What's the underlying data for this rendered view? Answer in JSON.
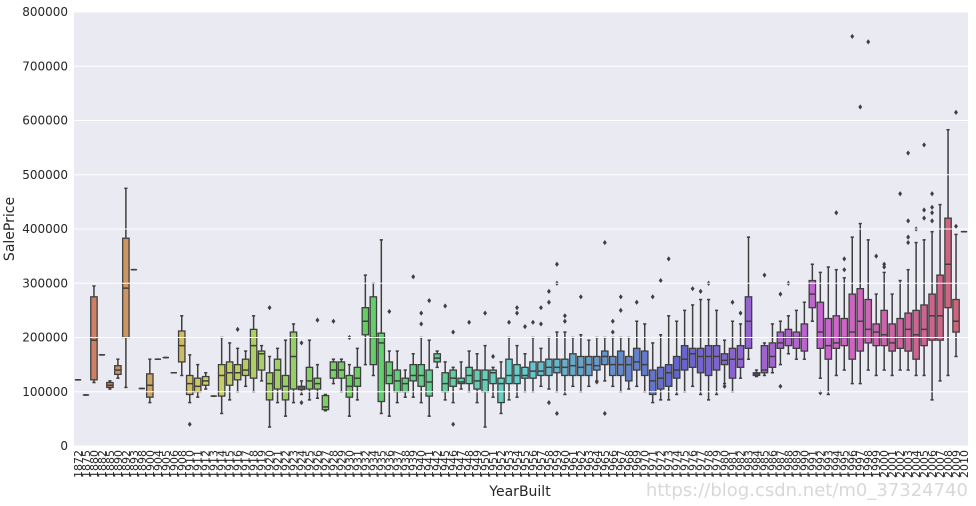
{
  "chart_data": {
    "type": "box",
    "x_label": "YearBuilt",
    "y_label": "SalePrice",
    "watermark": "https://blog.csdn.net/m0_37324740",
    "palette": "husl",
    "ylim": [
      0,
      800000
    ],
    "yticks": [
      0,
      100000,
      200000,
      300000,
      400000,
      500000,
      600000,
      700000,
      800000
    ],
    "grid": true,
    "categories": [
      "1872",
      "1875",
      "1880",
      "1882",
      "1885",
      "1890",
      "1892",
      "1893",
      "1898",
      "1900",
      "1904",
      "1905",
      "1906",
      "1908",
      "1910",
      "1911",
      "1912",
      "1913",
      "1914",
      "1915",
      "1916",
      "1917",
      "1918",
      "1919",
      "1920",
      "1921",
      "1922",
      "1923",
      "1924",
      "1925",
      "1926",
      "1927",
      "1928",
      "1929",
      "1930",
      "1931",
      "1932",
      "1934",
      "1935",
      "1936",
      "1937",
      "1938",
      "1939",
      "1940",
      "1941",
      "1942",
      "1945",
      "1946",
      "1947",
      "1948",
      "1949",
      "1950",
      "1951",
      "1952",
      "1953",
      "1954",
      "1955",
      "1956",
      "1957",
      "1958",
      "1959",
      "1960",
      "1961",
      "1962",
      "1963",
      "1964",
      "1965",
      "1966",
      "1967",
      "1968",
      "1969",
      "1970",
      "1971",
      "1972",
      "1973",
      "1974",
      "1975",
      "1976",
      "1977",
      "1978",
      "1979",
      "1980",
      "1981",
      "1982",
      "1983",
      "1984",
      "1985",
      "1986",
      "1987",
      "1988",
      "1989",
      "1990",
      "1991",
      "1992",
      "1993",
      "1994",
      "1995",
      "1996",
      "1997",
      "1998",
      "1999",
      "2000",
      "2001",
      "2002",
      "2003",
      "2004",
      "2005",
      "2006",
      "2007",
      "2008",
      "2009",
      "2010"
    ],
    "whislo": [
      122000,
      94000,
      117000,
      168000,
      105000,
      125000,
      108000,
      325000,
      106000,
      80000,
      160000,
      163000,
      135000,
      130000,
      80000,
      90000,
      105000,
      92000,
      60000,
      85000,
      100000,
      110000,
      100000,
      120000,
      35000,
      80000,
      55000,
      80000,
      95000,
      85000,
      88000,
      65000,
      115000,
      100000,
      55000,
      85000,
      150000,
      130000,
      60000,
      55000,
      80000,
      90000,
      90000,
      80000,
      55000,
      145000,
      85000,
      80000,
      105000,
      100000,
      80000,
      35000,
      90000,
      60000,
      85000,
      90000,
      100000,
      100000,
      110000,
      105000,
      100000,
      95000,
      110000,
      100000,
      110000,
      120000,
      120000,
      110000,
      100000,
      105000,
      110000,
      100000,
      80000,
      85000,
      85000,
      95000,
      100000,
      110000,
      95000,
      85000,
      95000,
      115000,
      100000,
      125000,
      160000,
      128000,
      130000,
      135000,
      150000,
      170000,
      160000,
      160000,
      230000,
      125000,
      95000,
      130000,
      140000,
      115000,
      115000,
      140000,
      130000,
      140000,
      130000,
      140000,
      140000,
      130000,
      130000,
      85000,
      120000,
      130000,
      165000,
      395000
    ],
    "q1": [
      122000,
      94000,
      122000,
      168000,
      108000,
      132000,
      200000,
      325000,
      106000,
      90000,
      160000,
      163000,
      135000,
      155000,
      95000,
      100000,
      112000,
      92000,
      92000,
      112000,
      122000,
      130000,
      125000,
      140000,
      85000,
      105000,
      85000,
      105000,
      104000,
      105000,
      105000,
      67000,
      125000,
      125000,
      90000,
      110000,
      205000,
      150000,
      82000,
      115000,
      100000,
      100000,
      120000,
      110000,
      92000,
      155000,
      100000,
      110000,
      115000,
      115000,
      105000,
      100000,
      115000,
      80000,
      115000,
      115000,
      125000,
      125000,
      130000,
      130000,
      135000,
      130000,
      130000,
      130000,
      130000,
      140000,
      150000,
      130000,
      130000,
      120000,
      140000,
      130000,
      95000,
      105000,
      110000,
      125000,
      140000,
      145000,
      135000,
      130000,
      140000,
      150000,
      125000,
      145000,
      180000,
      130000,
      135000,
      145000,
      180000,
      185000,
      180000,
      175000,
      255000,
      180000,
      160000,
      180000,
      185000,
      160000,
      175000,
      190000,
      185000,
      185000,
      175000,
      180000,
      175000,
      160000,
      185000,
      195000,
      195000,
      255000,
      210000,
      395000
    ],
    "median": [
      122000,
      94000,
      195000,
      168000,
      112000,
      140000,
      291000,
      325000,
      106000,
      112000,
      160000,
      163000,
      135000,
      185000,
      115000,
      110000,
      120000,
      92000,
      130000,
      135000,
      135000,
      140000,
      185000,
      170000,
      115000,
      140000,
      110000,
      165000,
      107000,
      120000,
      115000,
      72000,
      140000,
      140000,
      110000,
      125000,
      230000,
      200000,
      190000,
      130000,
      120000,
      115000,
      130000,
      130000,
      118000,
      162000,
      115000,
      125000,
      118000,
      130000,
      120000,
      122000,
      135000,
      115000,
      130000,
      130000,
      130000,
      138000,
      138000,
      145000,
      145000,
      145000,
      148000,
      145000,
      150000,
      148000,
      165000,
      150000,
      150000,
      150000,
      155000,
      150000,
      120000,
      125000,
      135000,
      140000,
      160000,
      170000,
      165000,
      165000,
      165000,
      158000,
      160000,
      160000,
      230000,
      133000,
      140000,
      165000,
      190000,
      200000,
      200000,
      200000,
      280000,
      210000,
      185000,
      190000,
      200000,
      210000,
      230000,
      215000,
      210000,
      205000,
      190000,
      200000,
      215000,
      205000,
      215000,
      240000,
      240000,
      335000,
      230000,
      395000
    ],
    "q3": [
      122000,
      94000,
      275000,
      168000,
      117000,
      148000,
      383000,
      325000,
      106000,
      133000,
      160000,
      163000,
      135000,
      212000,
      130000,
      125000,
      128000,
      92000,
      150000,
      155000,
      150000,
      160000,
      215000,
      175000,
      135000,
      160000,
      130000,
      210000,
      110000,
      145000,
      125000,
      93000,
      155000,
      155000,
      130000,
      145000,
      255000,
      275000,
      208000,
      155000,
      140000,
      125000,
      150000,
      150000,
      140000,
      170000,
      135000,
      140000,
      125000,
      145000,
      140000,
      140000,
      140000,
      125000,
      160000,
      150000,
      145000,
      155000,
      155000,
      160000,
      160000,
      160000,
      170000,
      165000,
      165000,
      165000,
      175000,
      165000,
      175000,
      165000,
      180000,
      175000,
      140000,
      145000,
      150000,
      165000,
      185000,
      180000,
      180000,
      185000,
      185000,
      170000,
      180000,
      185000,
      275000,
      135000,
      185000,
      190000,
      210000,
      215000,
      210000,
      225000,
      305000,
      265000,
      235000,
      240000,
      235000,
      280000,
      290000,
      270000,
      225000,
      250000,
      225000,
      235000,
      245000,
      250000,
      260000,
      280000,
      315000,
      420000,
      270000,
      395000
    ],
    "whishi": [
      122000,
      94000,
      295000,
      168000,
      120000,
      160000,
      475000,
      325000,
      106000,
      160000,
      160000,
      163000,
      135000,
      240000,
      168000,
      150000,
      135000,
      92000,
      200000,
      190000,
      180000,
      175000,
      240000,
      185000,
      165000,
      180000,
      195000,
      225000,
      120000,
      195000,
      150000,
      95000,
      160000,
      160000,
      150000,
      180000,
      315000,
      300000,
      380000,
      175000,
      175000,
      140000,
      170000,
      200000,
      195000,
      175000,
      155000,
      145000,
      155000,
      175000,
      170000,
      185000,
      145000,
      155000,
      200000,
      185000,
      170000,
      200000,
      180000,
      200000,
      210000,
      210000,
      200000,
      205000,
      195000,
      200000,
      200000,
      200000,
      200000,
      200000,
      230000,
      225000,
      190000,
      205000,
      240000,
      230000,
      250000,
      260000,
      270000,
      270000,
      250000,
      195000,
      230000,
      225000,
      385000,
      140000,
      190000,
      225000,
      230000,
      240000,
      250000,
      265000,
      335000,
      320000,
      330000,
      325000,
      310000,
      385000,
      410000,
      380000,
      280000,
      320000,
      280000,
      305000,
      325000,
      375000,
      380000,
      395000,
      445000,
      583000,
      390000,
      395000
    ],
    "fliers": [
      [],
      [],
      [],
      [],
      [],
      [],
      [],
      [],
      [],
      [],
      [],
      [],
      [],
      [],
      [
        40000
      ],
      [],
      [],
      [],
      [],
      [],
      [
        215000
      ],
      [],
      [],
      [],
      [
        255000
      ],
      [],
      [],
      [],
      [
        80000,
        190000
      ],
      [],
      [
        232000
      ],
      [],
      [
        230000
      ],
      [],
      [
        200000
      ],
      [],
      [],
      [],
      [],
      [
        248000
      ],
      [],
      [],
      [
        312000
      ],
      [
        225000,
        245000
      ],
      [
        268000
      ],
      [],
      [
        258000
      ],
      [
        40000,
        210000
      ],
      [],
      [
        228000
      ],
      [],
      [
        245000
      ],
      [
        165000
      ],
      [],
      [
        228000
      ],
      [
        245000,
        255000
      ],
      [
        220000
      ],
      [
        228000
      ],
      [
        225000,
        255000
      ],
      [
        80000,
        265000,
        285000
      ],
      [
        60000,
        300000,
        335000
      ],
      [
        230000,
        240000
      ],
      [],
      [
        275000
      ],
      [],
      [
        118000
      ],
      [
        60000,
        375000
      ],
      [
        210000,
        230000
      ],
      [
        250000,
        275000
      ],
      [],
      [
        265000
      ],
      [],
      [
        275000
      ],
      [
        305000
      ],
      [
        345000
      ],
      [],
      [],
      [
        290000
      ],
      [
        285000
      ],
      [
        300000
      ],
      [],
      [
        110000
      ],
      [
        265000
      ],
      [
        245000
      ],
      [],
      [],
      [
        315000
      ],
      [],
      [
        110000,
        280000
      ],
      [
        300000
      ],
      [],
      [],
      [],
      [
        98000
      ],
      [],
      [
        430000
      ],
      [
        325000,
        345000
      ],
      [
        755000
      ],
      [
        625000
      ],
      [
        745000
      ],
      [
        350000
      ],
      [
        335000,
        330000
      ],
      [],
      [
        465000
      ],
      [
        375000,
        385000,
        415000,
        540000
      ],
      [
        400000
      ],
      [
        420000,
        435000,
        555000
      ],
      [
        415000,
        430000,
        440000,
        465000
      ],
      [],
      [],
      [
        405000,
        615000
      ],
      []
    ]
  }
}
